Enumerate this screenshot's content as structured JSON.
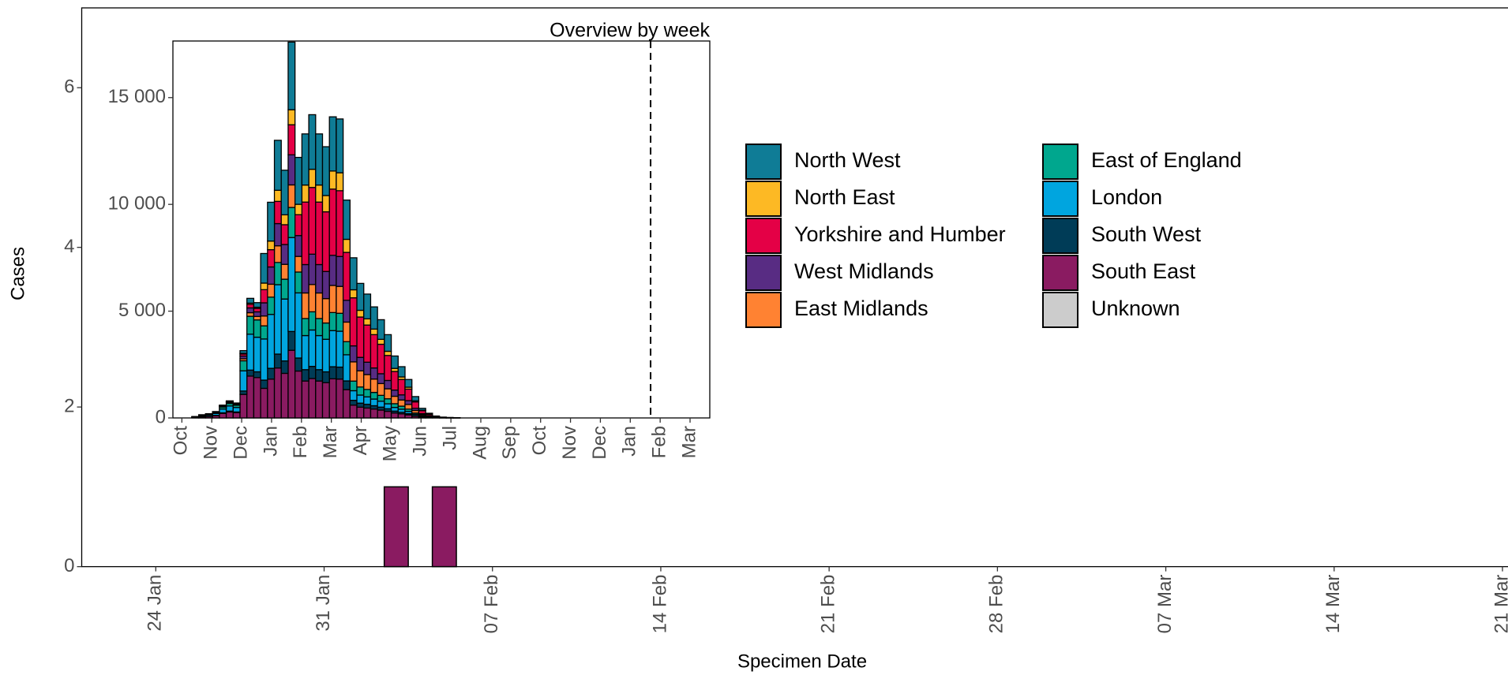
{
  "chart_data": [
    {
      "type": "bar",
      "xlabel": "Specimen Date",
      "ylabel": "Cases",
      "x": [
        34,
        36
      ],
      "values": [
        1,
        1
      ],
      "color": "#8a1b61",
      "xlim": [
        20.92,
        80.23
      ],
      "ylim": [
        0,
        7
      ],
      "xticks": [
        {
          "value": 24,
          "label": "24 Jan"
        },
        {
          "value": 31,
          "label": "31 Jan"
        },
        {
          "value": 38,
          "label": "07 Feb"
        },
        {
          "value": 45,
          "label": "14 Feb"
        },
        {
          "value": 52,
          "label": "21 Feb"
        },
        {
          "value": 59,
          "label": "28 Feb"
        },
        {
          "value": 66,
          "label": "07 Mar"
        },
        {
          "value": 73,
          "label": "14 Mar"
        },
        {
          "value": 80,
          "label": "21 Mar"
        }
      ],
      "yticks": [
        0,
        2,
        4,
        6
      ]
    },
    {
      "type": "bar",
      "stacked": true,
      "title": "Overview by week",
      "legend": "right",
      "x": [
        0.45,
        0.68,
        0.91,
        1.14,
        1.37,
        1.6,
        1.83,
        2.06,
        2.29,
        2.52,
        2.75,
        2.98,
        3.21,
        3.44,
        3.67,
        3.9,
        4.13,
        4.36,
        4.59,
        4.82,
        5.05,
        5.28,
        5.51,
        5.74,
        5.97,
        6.2,
        6.43,
        6.66,
        6.89,
        7.12,
        7.35,
        7.58,
        7.81,
        8.04,
        8.27,
        8.5,
        8.73,
        8.96,
        9.19
      ],
      "series": [
        {
          "name": "North West",
          "color": "#0f7c96",
          "values": [
            2,
            6,
            8,
            12,
            24,
            32,
            28,
            126,
            224,
            216,
            1386,
            1818,
            2340,
            2088,
            3168,
            2196,
            2394,
            2556,
            2394,
            2286,
            2538,
            2520,
            1836,
            1500,
            1260,
            1160,
            1040,
            920,
            780,
            580,
            480,
            360,
            200,
            90,
            44,
            18,
            8,
            4,
            2
          ]
        },
        {
          "name": "North East",
          "color": "#fdb924",
          "values": [
            1,
            2,
            2,
            3,
            6,
            8,
            7,
            32,
            56,
            54,
            308,
            404,
            520,
            464,
            704,
            488,
            798,
            852,
            798,
            762,
            846,
            840,
            612,
            375,
            315,
            290,
            260,
            230,
            195,
            145,
            120,
            90,
            50,
            22,
            11,
            5,
            2,
            1,
            0
          ]
        },
        {
          "name": "Yorkshire and Humber",
          "color": "#e40046",
          "values": [
            2,
            4,
            6,
            9,
            18,
            24,
            21,
            95,
            168,
            162,
            616,
            808,
            1040,
            928,
            1408,
            976,
            2926,
            3124,
            2926,
            2794,
            3102,
            3080,
            2244,
            2250,
            1890,
            1740,
            1560,
            1380,
            1170,
            870,
            720,
            540,
            300,
            135,
            66,
            27,
            12,
            6,
            3
          ]
        },
        {
          "name": "West Midlands",
          "color": "#582c83",
          "values": [
            2,
            6,
            8,
            12,
            24,
            32,
            28,
            126,
            224,
            216,
            616,
            808,
            1040,
            928,
            1408,
            976,
            1330,
            1420,
            1330,
            1270,
            1410,
            1400,
            1020,
            750,
            630,
            580,
            520,
            460,
            390,
            290,
            240,
            180,
            100,
            45,
            22,
            9,
            4,
            2,
            1
          ]
        },
        {
          "name": "East Midlands",
          "color": "#ff8232",
          "values": [
            2,
            4,
            6,
            9,
            18,
            24,
            21,
            95,
            168,
            162,
            462,
            606,
            780,
            696,
            1056,
            732,
            1197,
            1278,
            1197,
            1143,
            1269,
            1260,
            918,
            900,
            756,
            696,
            624,
            552,
            468,
            348,
            288,
            216,
            120,
            54,
            26,
            11,
            5,
            2,
            1
          ]
        },
        {
          "name": "East of England",
          "color": "#00a78e",
          "values": [
            9,
            22,
            30,
            45,
            90,
            120,
            105,
            472,
            840,
            810,
            616,
            808,
            1040,
            928,
            1408,
            976,
            798,
            852,
            798,
            762,
            846,
            840,
            612,
            450,
            378,
            348,
            312,
            276,
            234,
            174,
            144,
            108,
            60,
            27,
            13,
            5,
            2,
            1,
            1
          ]
        },
        {
          "name": "London",
          "color": "#00a5df",
          "values": [
            18,
            45,
            60,
            90,
            180,
            240,
            210,
            945,
            1680,
            1620,
            1925,
            2525,
            3250,
            2900,
            4400,
            3050,
            1596,
            1704,
            1596,
            1524,
            1692,
            1680,
            1224,
            450,
            378,
            348,
            312,
            276,
            234,
            174,
            144,
            108,
            60,
            27,
            13,
            5,
            2,
            1,
            1
          ]
        },
        {
          "name": "South West",
          "color": "#003c57",
          "values": [
            3,
            8,
            10,
            15,
            30,
            40,
            35,
            158,
            280,
            270,
            385,
            505,
            650,
            580,
            880,
            610,
            532,
            568,
            532,
            508,
            564,
            560,
            408,
            225,
            189,
            174,
            156,
            138,
            117,
            87,
            72,
            54,
            30,
            14,
            7,
            3,
            1,
            1,
            0
          ]
        },
        {
          "name": "South East",
          "color": "#8a1b61",
          "values": [
            21,
            53,
            70,
            105,
            210,
            280,
            245,
            1102,
            1960,
            1890,
            1386,
            1818,
            2340,
            2088,
            3168,
            2196,
            1729,
            1846,
            1729,
            1651,
            1833,
            1820,
            1326,
            600,
            504,
            464,
            416,
            368,
            312,
            232,
            192,
            144,
            80,
            36,
            18,
            7,
            3,
            2,
            1
          ]
        },
        {
          "name": "Unknown",
          "color": "#cccccc",
          "values": [
            0,
            0,
            0,
            0,
            0,
            0,
            0,
            0,
            0,
            0,
            0,
            0,
            0,
            0,
            0,
            0,
            0,
            0,
            0,
            0,
            0,
            0,
            0,
            0,
            0,
            0,
            0,
            0,
            0,
            0,
            0,
            0,
            0,
            0,
            0,
            0,
            0,
            0,
            0
          ]
        }
      ],
      "xlim": [
        -0.3,
        17.66
      ],
      "ylim": [
        0,
        17650
      ],
      "xticks": [
        {
          "value": 0,
          "label": "Oct"
        },
        {
          "value": 1,
          "label": "Nov"
        },
        {
          "value": 2,
          "label": "Dec"
        },
        {
          "value": 3,
          "label": "Jan"
        },
        {
          "value": 4,
          "label": "Feb"
        },
        {
          "value": 5,
          "label": "Mar"
        },
        {
          "value": 6,
          "label": "Apr"
        },
        {
          "value": 7,
          "label": "May"
        },
        {
          "value": 8,
          "label": "Jun"
        },
        {
          "value": 9,
          "label": "Jul"
        },
        {
          "value": 10,
          "label": "Aug"
        },
        {
          "value": 11,
          "label": "Sep"
        },
        {
          "value": 12,
          "label": "Oct"
        },
        {
          "value": 13,
          "label": "Nov"
        },
        {
          "value": 14,
          "label": "Dec"
        },
        {
          "value": 15,
          "label": "Jan"
        },
        {
          "value": 16,
          "label": "Feb"
        },
        {
          "value": 17,
          "label": "Mar"
        }
      ],
      "yticks": [
        0,
        {
          "value": 5000,
          "label": "5 000"
        },
        {
          "value": 10000,
          "label": "10 000"
        },
        {
          "value": 15000,
          "label": "15 000"
        }
      ],
      "vline": 15.68
    }
  ]
}
